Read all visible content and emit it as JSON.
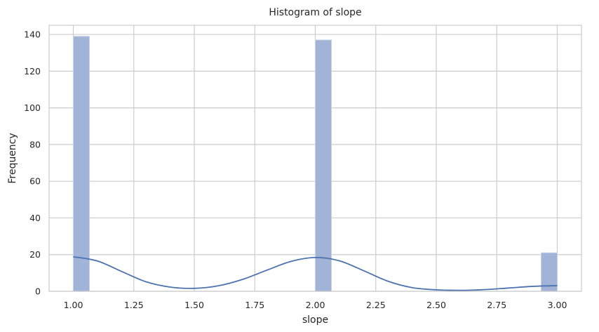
{
  "chart_data": {
    "type": "bar",
    "title": "Histogram of slope",
    "xlabel": "slope",
    "ylabel": "Frequency",
    "xlim": [
      0.9,
      3.1
    ],
    "ylim": [
      0,
      145
    ],
    "xticks": [
      1.0,
      1.25,
      1.5,
      1.75,
      2.0,
      2.25,
      2.5,
      2.75,
      3.0
    ],
    "xtick_labels": [
      "1.00",
      "1.25",
      "1.50",
      "1.75",
      "2.00",
      "2.25",
      "2.50",
      "2.75",
      "3.00"
    ],
    "yticks": [
      0,
      20,
      40,
      60,
      80,
      100,
      120,
      140
    ],
    "ytick_labels": [
      "0",
      "20",
      "40",
      "60",
      "80",
      "100",
      "120",
      "140"
    ],
    "bins": [
      {
        "x0": 1.0,
        "x1": 1.0667,
        "count": 139
      },
      {
        "x0": 2.0,
        "x1": 2.0667,
        "count": 137
      },
      {
        "x0": 2.9333,
        "x1": 3.0,
        "count": 21
      }
    ],
    "kde": {
      "x": [
        1.0,
        1.1,
        1.2,
        1.3,
        1.4,
        1.5,
        1.6,
        1.7,
        1.8,
        1.9,
        2.0,
        2.1,
        2.2,
        2.3,
        2.4,
        2.5,
        2.6,
        2.7,
        2.8,
        2.9,
        3.0
      ],
      "y": [
        18.8,
        16.5,
        10.8,
        5.2,
        2.3,
        1.6,
        3.0,
        6.5,
        11.5,
        16.3,
        18.4,
        16.6,
        11.2,
        5.5,
        2.0,
        0.8,
        0.5,
        0.9,
        1.8,
        2.7,
        3.1
      ]
    },
    "grid": true,
    "colors": {
      "bar_fill": "#a1b3d6",
      "bar_stroke": "#c9d3e8",
      "kde_line": "#4c72b0",
      "grid": "#cccccc",
      "spine": "#cccccc"
    }
  }
}
